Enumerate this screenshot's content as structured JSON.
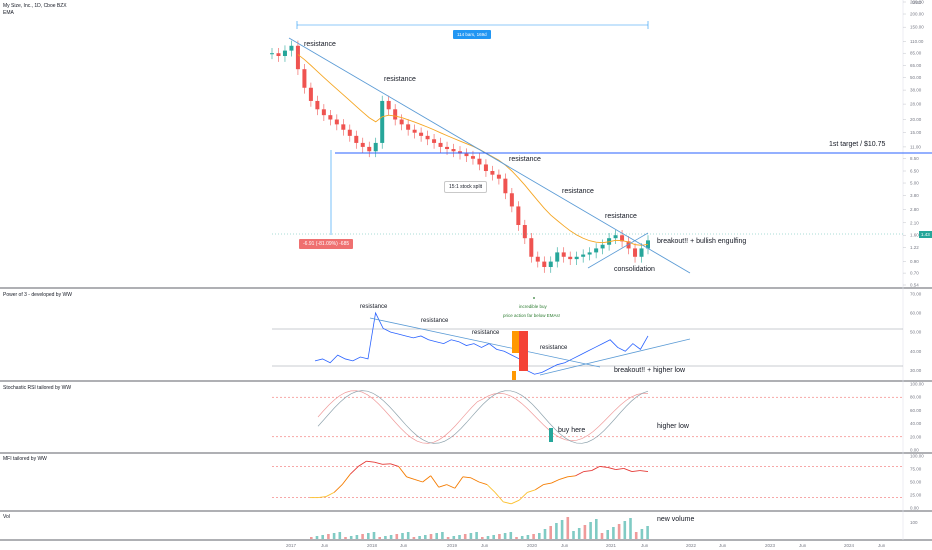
{
  "header": {
    "symbol_title": "My Size, Inc., 1D, Cboe BZX",
    "indicator": "EMA"
  },
  "top_badge": {
    "value": "USD"
  },
  "measure_box": {
    "bars_label": "114 bars, 169d"
  },
  "change_box": {
    "label": "-6.91 (-81.09%) -685"
  },
  "price_box": {
    "value": "1.43"
  },
  "price_axis": [
    "260.00",
    "200.00",
    "150.00",
    "110.00",
    "85.00",
    "65.00",
    "50.00",
    "38.00",
    "28.00",
    "20.00",
    "15.00",
    "11.00",
    "8.50",
    "6.50",
    "5.00",
    "3.80",
    "2.80",
    "2.10",
    "1.60",
    "1.22",
    "0.90",
    "0.70",
    "0.54"
  ],
  "annotations": {
    "resistance_1": "resistance",
    "resistance_2": "resistance",
    "resistance_3": "resistance",
    "resistance_4": "resistance",
    "resistance_5": "resistance",
    "split": "15:1 stock split",
    "breakout": "breakout!! + bullish engulfing",
    "consolidation": "consolidation",
    "target": "1st target  / $10.75"
  },
  "pane2": {
    "title": "Power of 3 - developed by WW",
    "axis": [
      "70.00",
      "60.00",
      "50.00",
      "40.00",
      "30.00"
    ],
    "notes": {
      "resistance_a": "resistance",
      "resistance_b": "resistance",
      "resistance_c": "resistance",
      "resistance_d": "resistance",
      "incredible": "incredible buy",
      "price_action": "price action far below EMAs!",
      "breakout": "breakout!! + higher low"
    }
  },
  "pane3": {
    "title": "Stochastic RSI tailored by WW",
    "axis": [
      "100.00",
      "80.00",
      "60.00",
      "40.00",
      "20.00",
      "0.00"
    ],
    "notes": {
      "buy_here": "buy here",
      "higher_low": "higher low"
    }
  },
  "pane4": {
    "title": "MFI tailored by WW",
    "axis": [
      "100.00",
      "75.00",
      "50.00",
      "25.00",
      "0.00"
    ]
  },
  "pane5": {
    "title": "Vol",
    "axis": [
      "100"
    ],
    "notes": {
      "new_volume": "new volume"
    }
  },
  "time_axis": [
    "2017",
    "Jun",
    "2018",
    "Jun",
    "2019",
    "Jun",
    "2020",
    "Jun",
    "2021",
    "Jun",
    "2022",
    "Jun",
    "2023",
    "Jun",
    "2024",
    "Jun"
  ],
  "colors": {
    "up": "#26a69a",
    "down": "#ef5350",
    "trend": "#5b9bd5",
    "ema": "#f5a623",
    "target_line": "#2962ff"
  },
  "chart_data": {
    "type": "candlestick",
    "scale": "log",
    "x": [
      "2017",
      "Jun",
      "2018",
      "Jun",
      "2019",
      "Jun",
      "2020",
      "Jun",
      "2021",
      "Jun",
      "2022",
      "Jun",
      "2023",
      "Jun",
      "2024",
      "Jun"
    ],
    "close_series": [
      85,
      80,
      90,
      100,
      60,
      40,
      30,
      25,
      22,
      20,
      18,
      16,
      14,
      12,
      11,
      10,
      12,
      30,
      25,
      20,
      18,
      16,
      15,
      14,
      13,
      12,
      11,
      10.5,
      10,
      9.5,
      9,
      8.5,
      7.5,
      6.5,
      6,
      5.5,
      4,
      3,
      2,
      1.5,
      1,
      0.9,
      0.8,
      0.9,
      1.1,
      1.0,
      0.95,
      1.0,
      1.05,
      1.1,
      1.2,
      1.3,
      1.5,
      1.6,
      1.4,
      1.2,
      1.0,
      1.2,
      1.43
    ],
    "target": 10.75,
    "last_price": 1.43
  }
}
